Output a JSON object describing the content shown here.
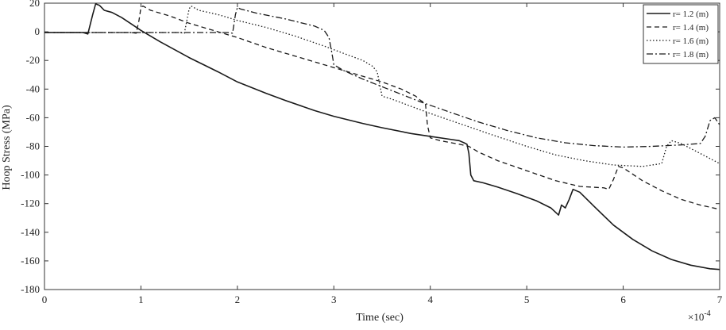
{
  "chart_data": {
    "type": "line",
    "xlabel": "Time (sec)",
    "ylabel": "Hoop Stress (MPa)",
    "x_exponent_label": "×10",
    "x_exponent_power": "-4",
    "xlim": [
      0,
      7
    ],
    "ylim": [
      -180,
      20
    ],
    "xticks": [
      0,
      1,
      2,
      3,
      4,
      5,
      6,
      7
    ],
    "xtick_labels": [
      "0",
      "1",
      "2",
      "3",
      "4",
      "5",
      "6",
      "7"
    ],
    "yticks": [
      20,
      0,
      -20,
      -40,
      -60,
      -80,
      -100,
      -120,
      -140,
      -160,
      -180
    ],
    "ytick_labels": [
      "20",
      "0",
      "-20",
      "-40",
      "-60",
      "-80",
      "-100",
      "-120",
      "-140",
      "-160",
      "-180"
    ],
    "grid": false,
    "legend_position": "top-right",
    "series": [
      {
        "name": "r= 1.2 (m)",
        "dash": "solid",
        "points": [
          [
            0,
            -0.5
          ],
          [
            0.4,
            -0.5
          ],
          [
            0.45,
            -1.5
          ],
          [
            0.5,
            12
          ],
          [
            0.53,
            19.5
          ],
          [
            0.57,
            18.5
          ],
          [
            0.62,
            15
          ],
          [
            0.7,
            13.5
          ],
          [
            0.8,
            10
          ],
          [
            0.9,
            5.5
          ],
          [
            1.0,
            1
          ],
          [
            1.2,
            -7
          ],
          [
            1.5,
            -18
          ],
          [
            1.8,
            -28
          ],
          [
            2.0,
            -35
          ],
          [
            2.3,
            -43
          ],
          [
            2.5,
            -48
          ],
          [
            2.8,
            -55
          ],
          [
            3.0,
            -59
          ],
          [
            3.3,
            -64
          ],
          [
            3.5,
            -67
          ],
          [
            3.8,
            -71
          ],
          [
            4.0,
            -73
          ],
          [
            4.2,
            -75
          ],
          [
            4.3,
            -76
          ],
          [
            4.35,
            -77.5
          ],
          [
            4.38,
            -78.5
          ],
          [
            4.4,
            -85
          ],
          [
            4.42,
            -100
          ],
          [
            4.45,
            -104
          ],
          [
            4.55,
            -105.5
          ],
          [
            4.7,
            -108.5
          ],
          [
            4.9,
            -113
          ],
          [
            5.1,
            -118
          ],
          [
            5.25,
            -123
          ],
          [
            5.33,
            -128
          ],
          [
            5.36,
            -121
          ],
          [
            5.4,
            -123
          ],
          [
            5.44,
            -117
          ],
          [
            5.48,
            -110
          ],
          [
            5.55,
            -112
          ],
          [
            5.7,
            -122
          ],
          [
            5.9,
            -135
          ],
          [
            6.1,
            -145
          ],
          [
            6.3,
            -153
          ],
          [
            6.5,
            -159
          ],
          [
            6.7,
            -163
          ],
          [
            6.9,
            -165.5
          ],
          [
            7.0,
            -166
          ]
        ]
      },
      {
        "name": "r= 1.4 (m)",
        "dash": "dashed",
        "points": [
          [
            0,
            -0.5
          ],
          [
            0.9,
            -0.5
          ],
          [
            0.95,
            -1
          ],
          [
            0.98,
            8
          ],
          [
            1.0,
            17
          ],
          [
            1.02,
            18
          ],
          [
            1.1,
            15
          ],
          [
            1.3,
            11
          ],
          [
            1.5,
            6
          ],
          [
            1.8,
            0
          ],
          [
            2.0,
            -4
          ],
          [
            2.3,
            -11
          ],
          [
            2.5,
            -15
          ],
          [
            2.8,
            -21
          ],
          [
            3.0,
            -25
          ],
          [
            3.3,
            -31
          ],
          [
            3.5,
            -35
          ],
          [
            3.7,
            -40
          ],
          [
            3.85,
            -45
          ],
          [
            3.9,
            -48
          ],
          [
            3.95,
            -50
          ],
          [
            3.97,
            -65
          ],
          [
            4.0,
            -74
          ],
          [
            4.1,
            -76
          ],
          [
            4.3,
            -78.5
          ],
          [
            4.4,
            -80
          ],
          [
            4.5,
            -84
          ],
          [
            4.7,
            -90
          ],
          [
            5.0,
            -97
          ],
          [
            5.3,
            -104
          ],
          [
            5.55,
            -108
          ],
          [
            5.8,
            -109
          ],
          [
            5.85,
            -110
          ],
          [
            5.9,
            -103
          ],
          [
            5.95,
            -94
          ],
          [
            6.0,
            -95
          ],
          [
            6.2,
            -104
          ],
          [
            6.4,
            -111
          ],
          [
            6.6,
            -117
          ],
          [
            6.8,
            -121
          ],
          [
            7.0,
            -124
          ]
        ]
      },
      {
        "name": "r= 1.6 (m)",
        "dash": "dotted",
        "points": [
          [
            0,
            -0.5
          ],
          [
            1.4,
            -0.5
          ],
          [
            1.45,
            -1
          ],
          [
            1.5,
            16
          ],
          [
            1.52,
            18
          ],
          [
            1.6,
            15
          ],
          [
            1.8,
            12
          ],
          [
            2.0,
            8
          ],
          [
            2.3,
            3
          ],
          [
            2.6,
            -3
          ],
          [
            2.9,
            -10
          ],
          [
            3.1,
            -15
          ],
          [
            3.3,
            -20
          ],
          [
            3.4,
            -24
          ],
          [
            3.45,
            -28
          ],
          [
            3.5,
            -45
          ],
          [
            3.6,
            -47
          ],
          [
            3.8,
            -52
          ],
          [
            4.0,
            -57
          ],
          [
            4.3,
            -64
          ],
          [
            4.6,
            -71
          ],
          [
            5.0,
            -80
          ],
          [
            5.3,
            -86
          ],
          [
            5.6,
            -90
          ],
          [
            5.9,
            -93
          ],
          [
            6.2,
            -94
          ],
          [
            6.4,
            -92
          ],
          [
            6.45,
            -80
          ],
          [
            6.5,
            -76
          ],
          [
            6.6,
            -78
          ],
          [
            6.8,
            -85
          ],
          [
            7.0,
            -92
          ]
        ]
      },
      {
        "name": "r= 1.8 (m)",
        "dash": "dashdot",
        "points": [
          [
            0,
            -0.5
          ],
          [
            1.9,
            -0.5
          ],
          [
            1.95,
            -1
          ],
          [
            1.98,
            12
          ],
          [
            2.0,
            17
          ],
          [
            2.03,
            16
          ],
          [
            2.2,
            13
          ],
          [
            2.5,
            9
          ],
          [
            2.8,
            4
          ],
          [
            2.9,
            1
          ],
          [
            2.95,
            -4
          ],
          [
            2.98,
            -15
          ],
          [
            3.0,
            -23
          ],
          [
            3.1,
            -27
          ],
          [
            3.3,
            -33
          ],
          [
            3.6,
            -41
          ],
          [
            3.9,
            -49
          ],
          [
            4.2,
            -56
          ],
          [
            4.5,
            -63
          ],
          [
            4.8,
            -69
          ],
          [
            5.1,
            -74
          ],
          [
            5.4,
            -77.5
          ],
          [
            5.7,
            -79.5
          ],
          [
            6.0,
            -80.5
          ],
          [
            6.3,
            -80
          ],
          [
            6.6,
            -79
          ],
          [
            6.8,
            -78
          ],
          [
            6.85,
            -73
          ],
          [
            6.9,
            -62
          ],
          [
            6.95,
            -60
          ],
          [
            7.0,
            -65
          ]
        ]
      }
    ]
  }
}
